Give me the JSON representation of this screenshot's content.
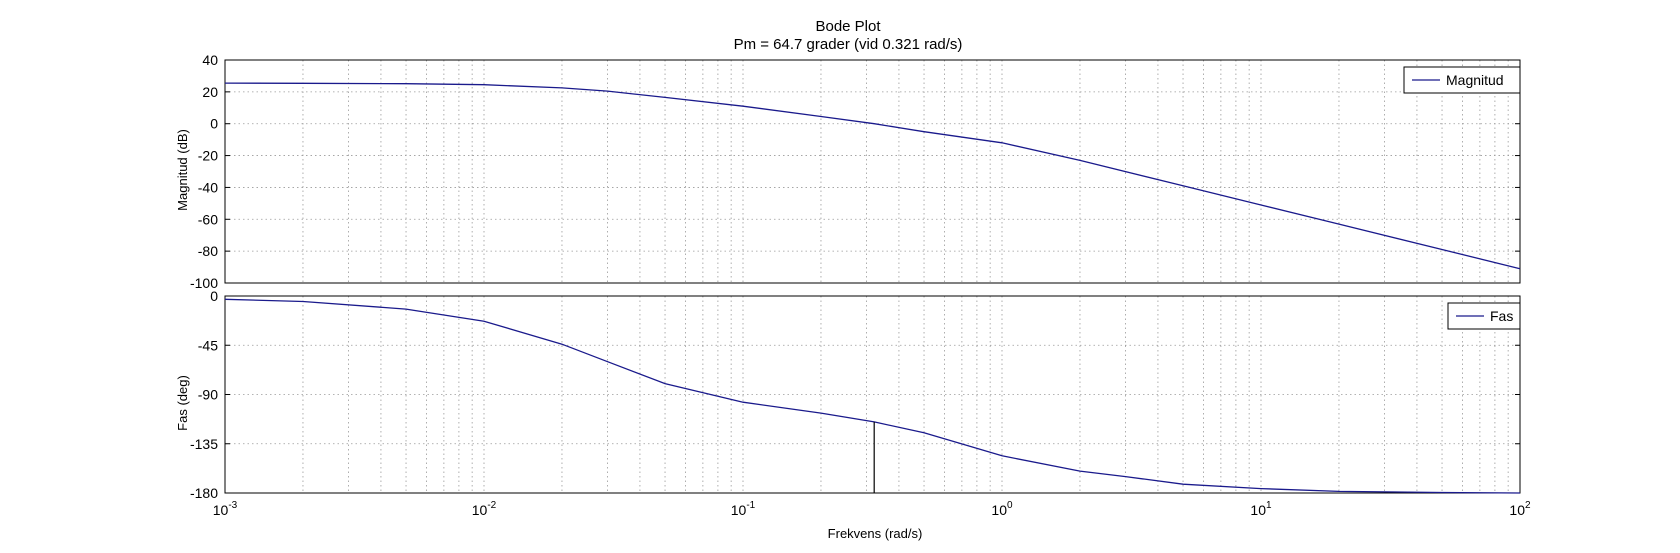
{
  "chart_data": [
    {
      "type": "line",
      "title": "Bode Plot",
      "subtitle": "Pm = 64.7 grader (vid 0.321 rad/s)",
      "xlabel": "",
      "ylabel": "Magnitud (dB)",
      "xscale": "log",
      "xlim": [
        0.001,
        100
      ],
      "ylim": [
        -100,
        40
      ],
      "yticks": [
        "40",
        "20",
        "0",
        "-20",
        "-40",
        "-60",
        "-80",
        "-100"
      ],
      "grid": true,
      "legend_position": "top-right",
      "series": [
        {
          "name": "Magnitud",
          "color": "#1a1a8c",
          "x": [
            0.001,
            0.002,
            0.005,
            0.01,
            0.02,
            0.03,
            0.05,
            0.1,
            0.2,
            0.321,
            0.5,
            1,
            2,
            5,
            10,
            20,
            50,
            100
          ],
          "y": [
            25.5,
            25.4,
            25.1,
            24.5,
            22.5,
            20.5,
            16.5,
            11,
            4.5,
            0,
            -5,
            -12,
            -23,
            -39,
            -51,
            -63,
            -79,
            -91
          ]
        }
      ]
    },
    {
      "type": "line",
      "xlabel": "Frekvens  (rad/s)",
      "ylabel": "Fas (deg)",
      "xscale": "log",
      "xlim": [
        0.001,
        100
      ],
      "ylim": [
        -180,
        0
      ],
      "yticks": [
        "0",
        "-45",
        "-90",
        "-135",
        "-180"
      ],
      "xticks": [
        "10-3",
        "10-2",
        "10-1",
        "100",
        "101",
        "102"
      ],
      "grid": true,
      "legend_position": "top-right",
      "series": [
        {
          "name": "Fas",
          "color": "#1a1a8c",
          "x": [
            0.001,
            0.002,
            0.005,
            0.01,
            0.02,
            0.03,
            0.05,
            0.1,
            0.2,
            0.321,
            0.5,
            1,
            2,
            3,
            5,
            10,
            20,
            50,
            100
          ],
          "y": [
            -3,
            -5,
            -12,
            -23,
            -44,
            -60,
            -80,
            -97,
            -107,
            -115,
            -125,
            -146,
            -160,
            -165,
            -172,
            -176,
            -178.5,
            -179.5,
            -180
          ]
        }
      ],
      "marker_line": {
        "x": 0.321,
        "y_from": -115,
        "y_to": -180
      }
    }
  ]
}
